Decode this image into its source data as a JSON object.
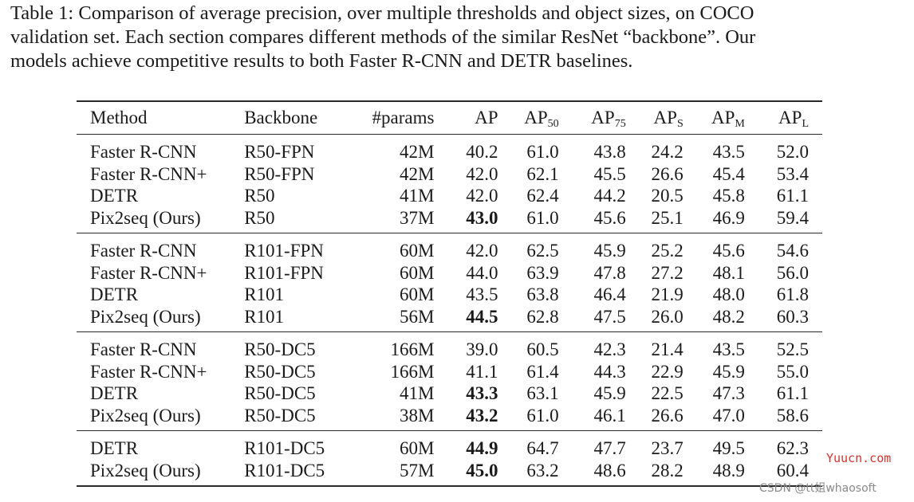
{
  "caption": {
    "lines": [
      "Table 1: Comparison of average precision, over multiple thresholds and object sizes, on COCO",
      "validation set. Each section compares different methods of the similar ResNet “backbone”. Our",
      "models achieve competitive results to both Faster R-CNN and DETR baselines."
    ]
  },
  "table": {
    "headers": {
      "method": "Method",
      "backbone": "Backbone",
      "params": "#params",
      "ap": "AP",
      "ap50": {
        "base": "AP",
        "sub": "50"
      },
      "ap75": {
        "base": "AP",
        "sub": "75"
      },
      "aps": {
        "base": "AP",
        "sub": "S"
      },
      "apm": {
        "base": "AP",
        "sub": "M"
      },
      "apl": {
        "base": "AP",
        "sub": "L"
      }
    },
    "sections": [
      {
        "rows": [
          {
            "method": "Faster R-CNN",
            "backbone": "R50-FPN",
            "params": "42M",
            "ap": "40.2",
            "ap50": "61.0",
            "ap75": "43.8",
            "aps": "24.2",
            "apm": "43.5",
            "apl": "52.0"
          },
          {
            "method": "Faster R-CNN+",
            "backbone": "R50-FPN",
            "params": "42M",
            "ap": "42.0",
            "ap50": "62.1",
            "ap75": "45.5",
            "aps": "26.6",
            "apm": "45.4",
            "apl": "53.4"
          },
          {
            "method": "DETR",
            "backbone": "R50",
            "params": "41M",
            "ap": "42.0",
            "ap50": "62.4",
            "ap75": "44.2",
            "aps": "20.5",
            "apm": "45.8",
            "apl": "61.1"
          },
          {
            "method": "Pix2seq (Ours)",
            "backbone": "R50",
            "params": "37M",
            "ap": "43.0",
            "ap50": "61.0",
            "ap75": "45.6",
            "aps": "25.1",
            "apm": "46.9",
            "apl": "59.4"
          }
        ]
      },
      {
        "rows": [
          {
            "method": "Faster R-CNN",
            "backbone": "R101-FPN",
            "params": "60M",
            "ap": "42.0",
            "ap50": "62.5",
            "ap75": "45.9",
            "aps": "25.2",
            "apm": "45.6",
            "apl": "54.6"
          },
          {
            "method": "Faster R-CNN+",
            "backbone": "R101-FPN",
            "params": "60M",
            "ap": "44.0",
            "ap50": "63.9",
            "ap75": "47.8",
            "aps": "27.2",
            "apm": "48.1",
            "apl": "56.0"
          },
          {
            "method": "DETR",
            "backbone": "R101",
            "params": "60M",
            "ap": "43.5",
            "ap50": "63.8",
            "ap75": "46.4",
            "aps": "21.9",
            "apm": "48.0",
            "apl": "61.8"
          },
          {
            "method": "Pix2seq (Ours)",
            "backbone": "R101",
            "params": "56M",
            "ap": "44.5",
            "ap50": "62.8",
            "ap75": "47.5",
            "aps": "26.0",
            "apm": "48.2",
            "apl": "60.3"
          }
        ]
      },
      {
        "rows": [
          {
            "method": "Faster R-CNN",
            "backbone": "R50-DC5",
            "params": "166M",
            "ap": "39.0",
            "ap50": "60.5",
            "ap75": "42.3",
            "aps": "21.4",
            "apm": "43.5",
            "apl": "52.5"
          },
          {
            "method": "Faster R-CNN+",
            "backbone": "R50-DC5",
            "params": "166M",
            "ap": "41.1",
            "ap50": "61.4",
            "ap75": "44.3",
            "aps": "22.9",
            "apm": "45.9",
            "apl": "55.0"
          },
          {
            "method": "DETR",
            "backbone": "R50-DC5",
            "params": "41M",
            "ap": "43.3",
            "ap50": "63.1",
            "ap75": "45.9",
            "aps": "22.5",
            "apm": "47.3",
            "apl": "61.1"
          },
          {
            "method": "Pix2seq (Ours)",
            "backbone": "R50-DC5",
            "params": "38M",
            "ap": "43.2",
            "ap50": "61.0",
            "ap75": "46.1",
            "aps": "26.6",
            "apm": "47.0",
            "apl": "58.6"
          }
        ]
      },
      {
        "rows": [
          {
            "method": "DETR",
            "backbone": "R101-DC5",
            "params": "60M",
            "ap": "44.9",
            "ap50": "64.7",
            "ap75": "47.7",
            "aps": "23.7",
            "apm": "49.5",
            "apl": "62.3"
          },
          {
            "method": "Pix2seq (Ours)",
            "backbone": "R101-DC5",
            "params": "57M",
            "ap": "45.0",
            "ap50": "63.2",
            "ap75": "48.6",
            "aps": "28.2",
            "apm": "48.9",
            "apl": "60.4"
          }
        ]
      }
    ],
    "bold_ap": [
      [
        false,
        false,
        false,
        true
      ],
      [
        false,
        false,
        false,
        true
      ],
      [
        false,
        false,
        true,
        true
      ],
      [
        true,
        true
      ]
    ]
  },
  "watermarks": {
    "site": "Yuucn.com",
    "credit": "CSDN @tt姐whaosoft"
  }
}
